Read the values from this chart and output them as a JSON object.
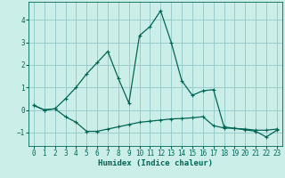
{
  "xlabel": "Humidex (Indice chaleur)",
  "background_color": "#cceee8",
  "grid_color": "#99cccc",
  "line_color": "#006655",
  "xlim": [
    -0.5,
    23.5
  ],
  "ylim": [
    -1.6,
    4.8
  ],
  "yticks": [
    -1,
    0,
    1,
    2,
    3,
    4
  ],
  "xticks": [
    0,
    1,
    2,
    3,
    4,
    5,
    6,
    7,
    8,
    9,
    10,
    11,
    12,
    13,
    14,
    15,
    16,
    17,
    18,
    19,
    20,
    21,
    22,
    23
  ],
  "series1_x": [
    0,
    1,
    2,
    3,
    4,
    5,
    6,
    7,
    8,
    9,
    10,
    11,
    12,
    13,
    14,
    15,
    16,
    17,
    18,
    19,
    20,
    21,
    22,
    23
  ],
  "series1_y": [
    0.2,
    0.0,
    0.05,
    -0.3,
    -0.55,
    -0.95,
    -0.95,
    -0.85,
    -0.75,
    -0.65,
    -0.55,
    -0.5,
    -0.45,
    -0.4,
    -0.38,
    -0.35,
    -0.3,
    -0.7,
    -0.8,
    -0.82,
    -0.85,
    -0.9,
    -0.9,
    -0.85
  ],
  "series2_x": [
    0,
    1,
    2,
    3,
    4,
    5,
    6,
    7,
    8,
    9,
    10,
    11,
    12,
    13,
    14,
    15,
    16,
    17,
    18,
    19,
    20,
    21,
    22,
    23
  ],
  "series2_y": [
    0.2,
    0.0,
    0.05,
    0.5,
    1.0,
    1.6,
    2.1,
    2.6,
    1.4,
    0.3,
    3.3,
    3.7,
    4.4,
    3.0,
    1.3,
    0.65,
    0.85,
    0.9,
    -0.75,
    -0.82,
    -0.88,
    -0.95,
    -1.2,
    -0.9
  ]
}
